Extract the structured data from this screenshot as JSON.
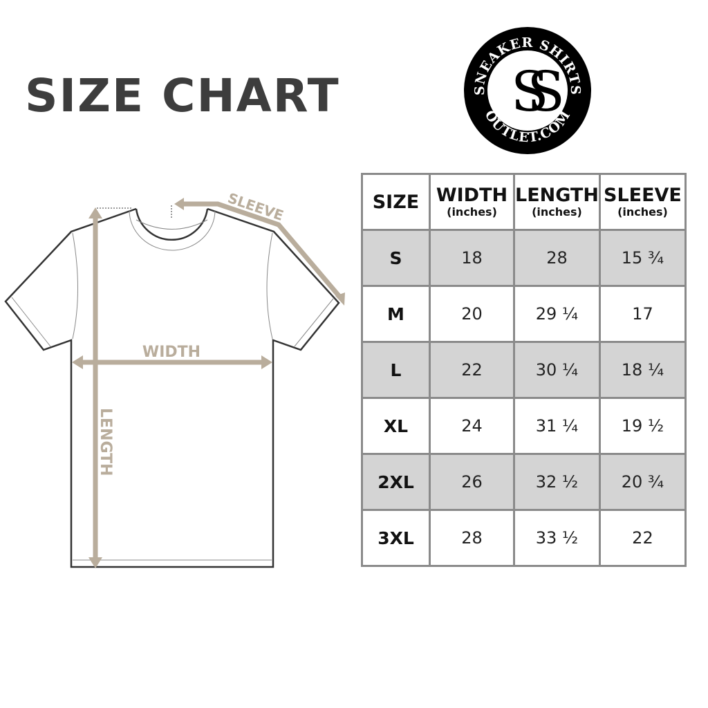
{
  "title": "SIZE CHART",
  "logo": {
    "top_text": "SNEAKER SHIRTS",
    "bottom_text": "OUTLET.COM",
    "monogram": "SS"
  },
  "diagram": {
    "width_label": "WIDTH",
    "length_label": "LENGTH",
    "sleeve_label": "SLEEVE",
    "accent_color": "#b9ad9c"
  },
  "table": {
    "headers": [
      {
        "label": "SIZE",
        "unit": ""
      },
      {
        "label": "WIDTH",
        "unit": "(inches)"
      },
      {
        "label": "LENGTH",
        "unit": "(inches)"
      },
      {
        "label": "SLEEVE",
        "unit": "(inches)"
      }
    ],
    "rows": [
      [
        "S",
        "18",
        "28",
        "15 ¾"
      ],
      [
        "M",
        "20",
        "29 ¼",
        "17"
      ],
      [
        "L",
        "22",
        "30 ¼",
        "18 ¼"
      ],
      [
        "XL",
        "24",
        "31 ¼",
        "19 ½"
      ],
      [
        "2XL",
        "26",
        "32 ½",
        "20 ¾"
      ],
      [
        "3XL",
        "28",
        "33 ½",
        "22"
      ]
    ]
  }
}
